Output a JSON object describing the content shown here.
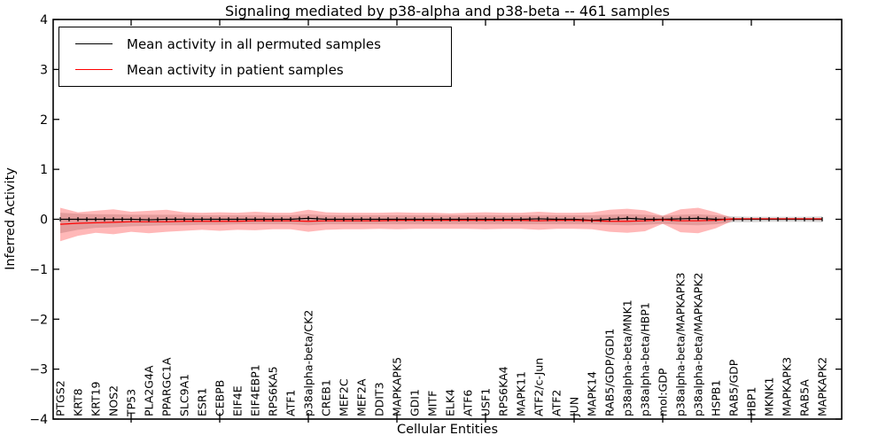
{
  "title": "Signaling mediated by p38-alpha and p38-beta -- 461 samples",
  "legend": {
    "items": [
      {
        "label": "Mean activity in all permuted samples",
        "color": "#000000"
      },
      {
        "label": "Mean activity in patient samples",
        "color": "#ff0000"
      }
    ]
  },
  "chart_data": {
    "type": "line",
    "title": "Signaling mediated by p38-alpha and p38-beta -- 461 samples",
    "xlabel": "Cellular Entities",
    "ylabel": "Inferred Activity",
    "ylim": [
      -4,
      4
    ],
    "y_ticks": [
      4,
      3,
      2,
      1,
      0,
      -1,
      -2,
      -3,
      -4
    ],
    "grid": false,
    "legend_position": "upper left",
    "categories": [
      "PTGS2",
      "KRT8",
      "KRT19",
      "NOS2",
      "TP53",
      "PLA2G4A",
      "PPARGC1A",
      "SLC9A1",
      "ESR1",
      "CEBPB",
      "EIF4E",
      "EIF4EBP1",
      "RPS6KA5",
      "ATF1",
      "p38alpha-beta/CK2",
      "CREB1",
      "MEF2C",
      "MEF2A",
      "DDIT3",
      "MAPKAPK5",
      "GDI1",
      "MITF",
      "ELK4",
      "ATF6",
      "USF1",
      "RPS6KA4",
      "MAPK11",
      "ATF2/c-Jun",
      "ATF2",
      "JUN",
      "MAPK14",
      "RAB5/GDP/GDI1",
      "p38alpha-beta/MNK1",
      "p38alpha-beta/HBP1",
      "mol:GDP",
      "p38alpha-beta/MAPKAPK3",
      "p38alpha-beta/MAPKAPK2",
      "HSPB1",
      "RAB5/GDP",
      "HBP1",
      "MKNK1",
      "MAPKAPK3",
      "RAB5A",
      "MAPKAPK2"
    ],
    "series": [
      {
        "name": "Mean activity in all permuted samples",
        "color": "#000000",
        "band_color": "rgba(128,128,128,0.30)",
        "values": [
          0,
          0,
          0,
          0,
          0,
          -0.01,
          0,
          0,
          0,
          0,
          0,
          0,
          0,
          0,
          0.02,
          0,
          0,
          0,
          0,
          0,
          0,
          0,
          0,
          0,
          0,
          0,
          0,
          0.01,
          0,
          0,
          -0.02,
          0,
          0.02,
          0,
          0,
          0.01,
          0.02,
          0,
          0,
          0,
          0,
          0,
          0,
          0
        ],
        "band_upper": [
          0.13,
          0.11,
          0.1,
          0.1,
          0.09,
          0.09,
          0.09,
          0.09,
          0.08,
          0.08,
          0.08,
          0.08,
          0.08,
          0.08,
          0.1,
          0.08,
          0.08,
          0.08,
          0.08,
          0.08,
          0.08,
          0.08,
          0.08,
          0.08,
          0.08,
          0.08,
          0.08,
          0.08,
          0.08,
          0.08,
          0.08,
          0.09,
          0.1,
          0.09,
          0.07,
          0.09,
          0.1,
          0.08,
          0.06,
          0.05,
          0.05,
          0.05,
          0.05,
          0.06
        ],
        "band_lower": [
          -0.28,
          -0.21,
          -0.17,
          -0.16,
          -0.14,
          -0.13,
          -0.12,
          -0.12,
          -0.11,
          -0.11,
          -0.1,
          -0.1,
          -0.1,
          -0.1,
          -0.12,
          -0.1,
          -0.1,
          -0.1,
          -0.1,
          -0.1,
          -0.1,
          -0.1,
          -0.1,
          -0.1,
          -0.1,
          -0.1,
          -0.1,
          -0.1,
          -0.1,
          -0.1,
          -0.1,
          -0.11,
          -0.12,
          -0.11,
          -0.09,
          -0.11,
          -0.12,
          -0.1,
          -0.06,
          -0.06,
          -0.05,
          -0.05,
          -0.05,
          -0.06
        ]
      },
      {
        "name": "Mean activity in patient samples",
        "color": "#ff0000",
        "band_color": "rgba(255,0,0,0.28)",
        "values": [
          -0.1,
          -0.08,
          -0.07,
          -0.06,
          -0.05,
          -0.05,
          -0.05,
          -0.04,
          -0.04,
          -0.04,
          -0.04,
          -0.03,
          -0.03,
          -0.03,
          -0.04,
          -0.03,
          -0.03,
          -0.03,
          -0.03,
          -0.02,
          -0.02,
          -0.02,
          -0.02,
          -0.02,
          -0.02,
          -0.02,
          -0.02,
          -0.03,
          -0.02,
          -0.02,
          -0.03,
          -0.04,
          -0.04,
          -0.03,
          -0.01,
          -0.03,
          -0.03,
          -0.02,
          0.01,
          0.01,
          0.01,
          0.01,
          0.01,
          0.01
        ],
        "band_upper": [
          0.23,
          0.14,
          0.17,
          0.2,
          0.15,
          0.17,
          0.19,
          0.14,
          0.13,
          0.14,
          0.13,
          0.15,
          0.13,
          0.13,
          0.19,
          0.14,
          0.13,
          0.13,
          0.13,
          0.14,
          0.13,
          0.13,
          0.12,
          0.13,
          0.14,
          0.13,
          0.13,
          0.15,
          0.13,
          0.13,
          0.14,
          0.19,
          0.21,
          0.18,
          0.07,
          0.2,
          0.23,
          0.14,
          0.02,
          0.01,
          0.01,
          0.01,
          0.01,
          0.02
        ],
        "band_lower": [
          -0.44,
          -0.33,
          -0.27,
          -0.3,
          -0.25,
          -0.28,
          -0.25,
          -0.23,
          -0.21,
          -0.23,
          -0.21,
          -0.22,
          -0.2,
          -0.2,
          -0.25,
          -0.21,
          -0.2,
          -0.2,
          -0.19,
          -0.2,
          -0.19,
          -0.19,
          -0.19,
          -0.19,
          -0.2,
          -0.19,
          -0.19,
          -0.21,
          -0.19,
          -0.19,
          -0.2,
          -0.25,
          -0.27,
          -0.24,
          -0.09,
          -0.26,
          -0.28,
          -0.18,
          -0.02,
          -0.01,
          -0.01,
          -0.01,
          -0.01,
          -0.02
        ]
      }
    ]
  }
}
